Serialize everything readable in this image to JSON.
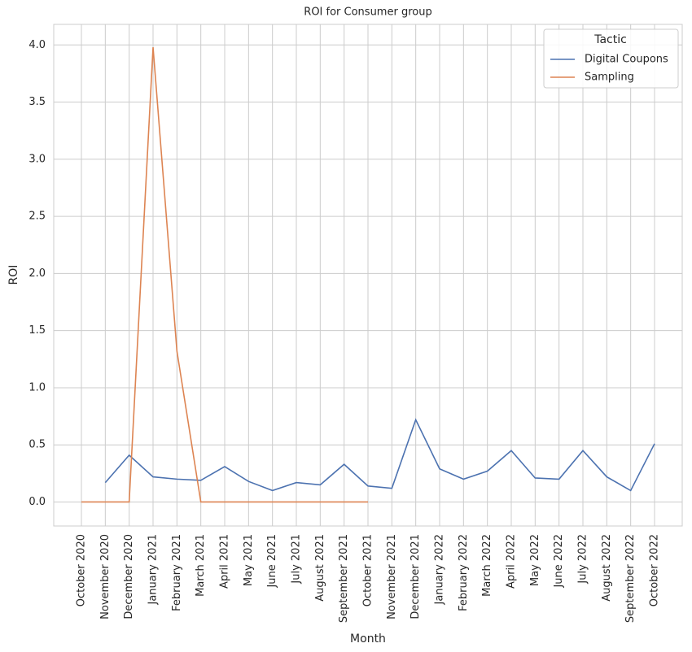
{
  "chart_data": {
    "type": "line",
    "title": "ROI for Consumer group",
    "x_label": "Month",
    "y_label": "ROI",
    "categories": [
      "October 2020",
      "November 2020",
      "December 2020",
      "January 2021",
      "February 2021",
      "March 2021",
      "April 2021",
      "May 2021",
      "June 2021",
      "July 2021",
      "August 2021",
      "September 2021",
      "October 2021",
      "November 2021",
      "December 2021",
      "January 2022",
      "February 2022",
      "March 2022",
      "April 2022",
      "May 2022",
      "June 2022",
      "July 2022",
      "August 2022",
      "September 2022",
      "October 2022"
    ],
    "series": [
      {
        "name": "Digital Coupons",
        "color": "#4c72b0",
        "values": [
          null,
          0.17,
          0.41,
          0.22,
          0.2,
          0.19,
          0.31,
          0.18,
          0.1,
          0.17,
          0.15,
          0.33,
          0.14,
          0.12,
          0.72,
          0.29,
          0.2,
          0.27,
          0.45,
          0.21,
          0.2,
          0.45,
          0.22,
          0.1,
          0.51
        ]
      },
      {
        "name": "Sampling",
        "color": "#dd8452",
        "values": [
          0,
          0,
          0,
          3.98,
          1.32,
          0,
          0,
          0,
          0,
          0,
          0,
          0,
          0,
          null,
          null,
          null,
          null,
          null,
          null,
          null,
          null,
          null,
          null,
          null,
          null
        ]
      }
    ],
    "legend_title": "Tactic",
    "legend": "upper right",
    "ylim": [
      -0.21,
      4.18
    ],
    "yticks": [
      {
        "value": 0,
        "label": "0.0"
      },
      0.5,
      {
        "value": 1,
        "label": "1.0"
      },
      1.5,
      {
        "value": 2,
        "label": "2.0"
      },
      2.5,
      {
        "value": 3,
        "label": "3.0"
      },
      3.5,
      {
        "value": 4,
        "label": "4.0"
      }
    ],
    "grid": true
  }
}
